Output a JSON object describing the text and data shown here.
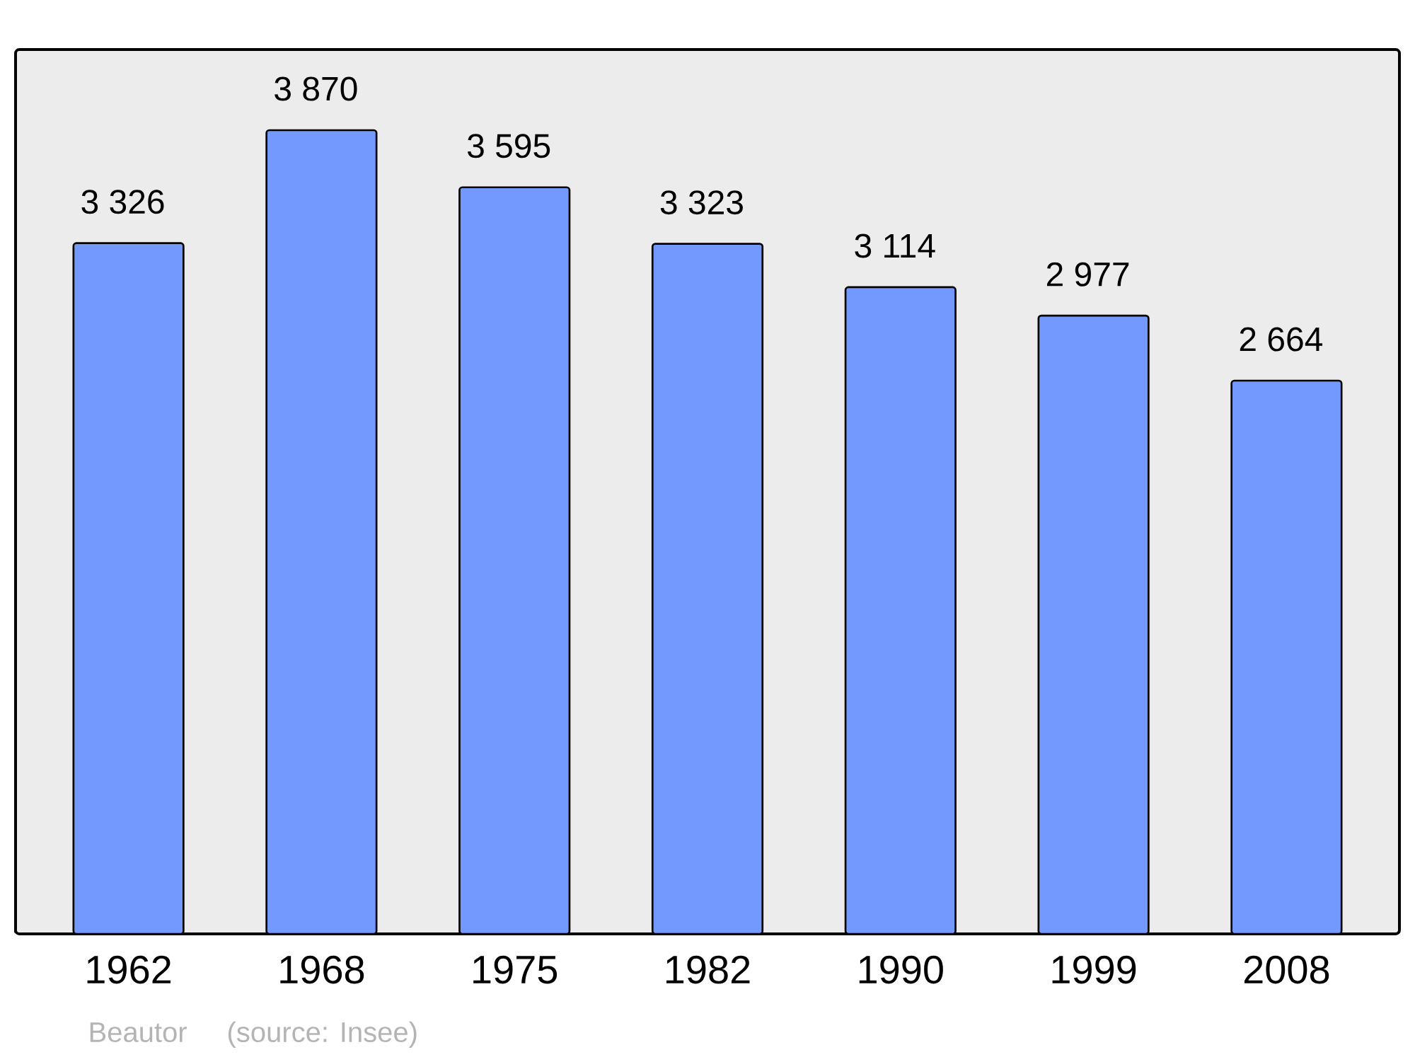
{
  "chart_data": {
    "type": "bar",
    "categories": [
      "1962",
      "1968",
      "1975",
      "1982",
      "1990",
      "1999",
      "2008"
    ],
    "values": [
      3326,
      3870,
      3595,
      3323,
      3114,
      2977,
      2664
    ],
    "value_labels": [
      "3 326",
      "3 870",
      "3 595",
      "3 323",
      "3 114",
      "2 977",
      "2 664"
    ],
    "color": "#7399ff",
    "annotations": [
      "Beautor",
      "(source: Insee)"
    ]
  }
}
